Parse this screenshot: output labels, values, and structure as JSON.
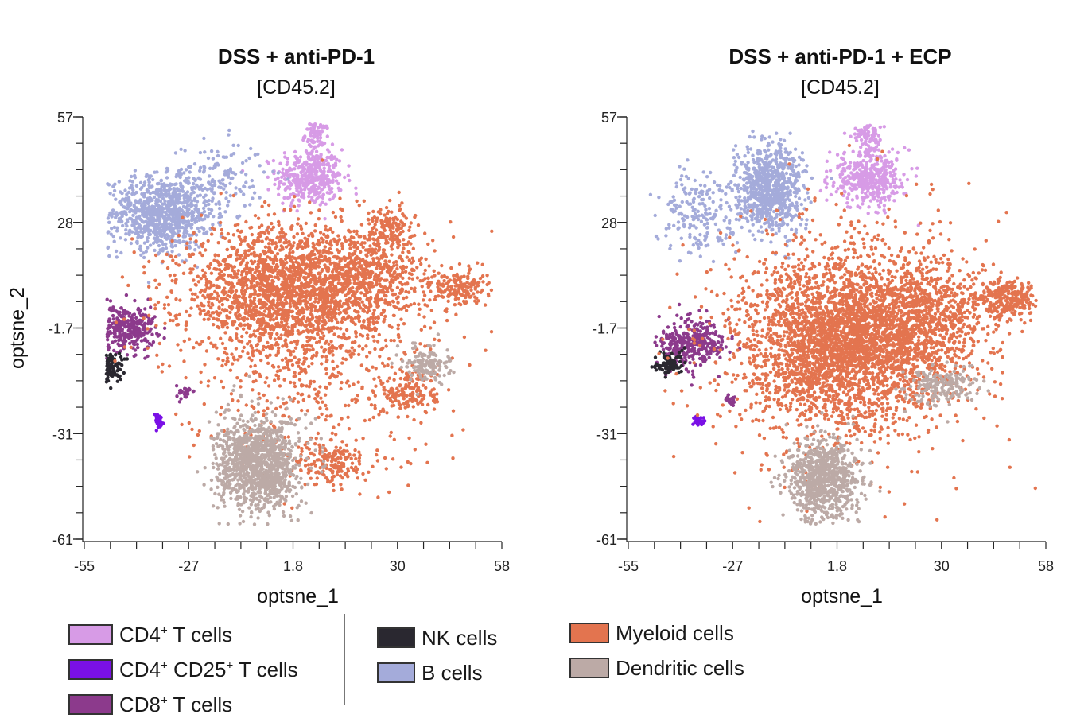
{
  "colors": {
    "cd4": "#d79be6",
    "cd4cd25": "#7a10e6",
    "cd8": "#8c3a8c",
    "nk": "#2a2830",
    "b": "#a4abda",
    "myeloid": "#e3744f",
    "dendritic": "#bcaaa6"
  },
  "chart_data": [
    {
      "type": "scatter",
      "title": "DSS + anti-PD-1",
      "subtitle": "[CD45.2]",
      "xlabel": "optsne_1",
      "ylabel": "optsne_2",
      "xlim": [
        -55,
        58
      ],
      "ylim": [
        -61,
        57
      ],
      "xticks": [
        "-55",
        "-27",
        "1.8",
        "30",
        "58"
      ],
      "yticks": [
        "57",
        "28",
        "-1.7",
        "-31",
        "-61"
      ],
      "clusters": [
        {
          "population": "CD4+ T cells",
          "color_key": "cd4",
          "cx": 6,
          "cy": 40,
          "sx": 4.5,
          "sy": 4.0,
          "n": 420
        },
        {
          "population": "CD4+ T cells",
          "color_key": "cd4",
          "cx": 8,
          "cy": 52,
          "sx": 1.6,
          "sy": 2.0,
          "n": 80
        },
        {
          "population": "B cells",
          "color_key": "b",
          "cx": -34,
          "cy": 30,
          "sx": 7.0,
          "sy": 5.0,
          "n": 900
        },
        {
          "population": "B cells",
          "color_key": "b",
          "cx": -20,
          "cy": 40,
          "sx": 7.0,
          "sy": 5.0,
          "n": 160
        },
        {
          "population": "CD8+ T cells",
          "color_key": "cd8",
          "cx": -44,
          "cy": -2,
          "sx": 4.2,
          "sy": 3.2,
          "n": 330
        },
        {
          "population": "CD8+ T cells",
          "color_key": "cd8",
          "cx": -28,
          "cy": -20,
          "sx": 1.0,
          "sy": 1.0,
          "n": 30
        },
        {
          "population": "NK cells",
          "color_key": "nk",
          "cx": -48,
          "cy": -13,
          "sx": 1.6,
          "sy": 2.0,
          "n": 120
        },
        {
          "population": "CD4+ CD25+ T cells",
          "color_key": "cd4cd25",
          "cx": -35,
          "cy": -28,
          "sx": 0.7,
          "sy": 1.0,
          "n": 40
        },
        {
          "population": "Myeloid cells",
          "color_key": "myeloid",
          "cx": -3,
          "cy": 8,
          "sx": 13,
          "sy": 9,
          "n": 1700
        },
        {
          "population": "Myeloid cells",
          "color_key": "myeloid",
          "cx": 20,
          "cy": 12,
          "sx": 9,
          "sy": 7,
          "n": 700
        },
        {
          "population": "Myeloid cells",
          "color_key": "myeloid",
          "cx": 28,
          "cy": 26,
          "sx": 3,
          "sy": 3,
          "n": 120
        },
        {
          "population": "Myeloid cells",
          "color_key": "myeloid",
          "cx": 46,
          "cy": 9,
          "sx": 4,
          "sy": 2.6,
          "n": 170
        },
        {
          "population": "Myeloid cells",
          "color_key": "myeloid",
          "cx": 33,
          "cy": -20,
          "sx": 4,
          "sy": 3.5,
          "n": 160
        },
        {
          "population": "Myeloid cells",
          "color_key": "myeloid",
          "cx": 12,
          "cy": -40,
          "sx": 5,
          "sy": 3,
          "n": 170
        },
        {
          "population": "Myeloid cells",
          "color_key": "myeloid",
          "cx": 6,
          "cy": -8,
          "sx": 18,
          "sy": 18,
          "n": 650
        },
        {
          "population": "Dendritic cells",
          "color_key": "dendritic",
          "cx": -8,
          "cy": -40,
          "sx": 5.5,
          "sy": 6.5,
          "n": 1200
        },
        {
          "population": "Dendritic cells",
          "color_key": "dendritic",
          "cx": 38,
          "cy": -12,
          "sx": 3,
          "sy": 2.6,
          "n": 140
        }
      ]
    },
    {
      "type": "scatter",
      "title": "DSS + anti-PD-1 + ECP",
      "subtitle": "[CD45.2]",
      "xlabel": "optsne_1",
      "ylabel": "optsne_2",
      "xlim": [
        -55,
        58
      ],
      "ylim": [
        -61,
        57
      ],
      "xticks": [
        "-55",
        "-27",
        "1.8",
        "30",
        "58"
      ],
      "yticks": [
        "57",
        "28",
        "-1.7",
        "-31",
        "-61"
      ],
      "clusters": [
        {
          "population": "CD4+ T cells",
          "color_key": "cd4",
          "cx": 10,
          "cy": 40,
          "sx": 5,
          "sy": 4,
          "n": 430
        },
        {
          "population": "CD4+ T cells",
          "color_key": "cd4",
          "cx": 10,
          "cy": 52,
          "sx": 1.8,
          "sy": 2.0,
          "n": 80
        },
        {
          "population": "B cells",
          "color_key": "b",
          "cx": -17,
          "cy": 37,
          "sx": 4.5,
          "sy": 6,
          "n": 800
        },
        {
          "population": "B cells",
          "color_key": "b",
          "cx": -37,
          "cy": 30,
          "sx": 5,
          "sy": 6,
          "n": 180
        },
        {
          "population": "CD8+ T cells",
          "color_key": "cd8",
          "cx": -38,
          "cy": -6,
          "sx": 4.5,
          "sy": 3.5,
          "n": 330
        },
        {
          "population": "CD8+ T cells",
          "color_key": "cd8",
          "cx": -27,
          "cy": -22,
          "sx": 0.8,
          "sy": 0.8,
          "n": 25
        },
        {
          "population": "NK cells",
          "color_key": "nk",
          "cx": -44,
          "cy": -12,
          "sx": 2,
          "sy": 1.6,
          "n": 90
        },
        {
          "population": "CD4+ CD25+ T cells",
          "color_key": "cd4cd25",
          "cx": -36,
          "cy": -28,
          "sx": 0.7,
          "sy": 0.8,
          "n": 35
        },
        {
          "population": "Myeloid cells",
          "color_key": "myeloid",
          "cx": 2,
          "cy": -6,
          "sx": 13,
          "sy": 11,
          "n": 2600
        },
        {
          "population": "Myeloid cells",
          "color_key": "myeloid",
          "cx": 24,
          "cy": 0,
          "sx": 9,
          "sy": 9,
          "n": 900
        },
        {
          "population": "Myeloid cells",
          "color_key": "myeloid",
          "cx": 47,
          "cy": 6,
          "sx": 4.5,
          "sy": 2.6,
          "n": 260
        },
        {
          "population": "Myeloid cells",
          "color_key": "myeloid",
          "cx": 4,
          "cy": -6,
          "sx": 20,
          "sy": 20,
          "n": 700
        },
        {
          "population": "Dendritic cells",
          "color_key": "dendritic",
          "cx": -2,
          "cy": -44,
          "sx": 5,
          "sy": 5.5,
          "n": 800
        },
        {
          "population": "Dendritic cells",
          "color_key": "dendritic",
          "cx": 30,
          "cy": -18,
          "sx": 5,
          "sy": 2.5,
          "n": 200
        }
      ]
    }
  ],
  "legend": {
    "col1": [
      {
        "label_base": "CD4",
        "sup1": "+",
        "mid": " T cells",
        "mid2": "",
        "sup2": "",
        "tail": "",
        "color_key": "cd4"
      },
      {
        "label_base": "CD4",
        "sup1": "+",
        "mid": " CD25",
        "mid2": "",
        "sup2": "+",
        "tail": " T cells",
        "color_key": "cd4cd25"
      },
      {
        "label_base": "CD8",
        "sup1": "+",
        "mid": " T cells",
        "mid2": "",
        "sup2": "",
        "tail": "",
        "color_key": "cd8"
      }
    ],
    "col2": [
      {
        "label": "NK cells",
        "color_key": "nk"
      },
      {
        "label": "B cells",
        "color_key": "b"
      }
    ],
    "col3": [
      {
        "label": "Myeloid cells",
        "color_key": "myeloid"
      },
      {
        "label": "Dendritic cells",
        "color_key": "dendritic"
      }
    ]
  }
}
